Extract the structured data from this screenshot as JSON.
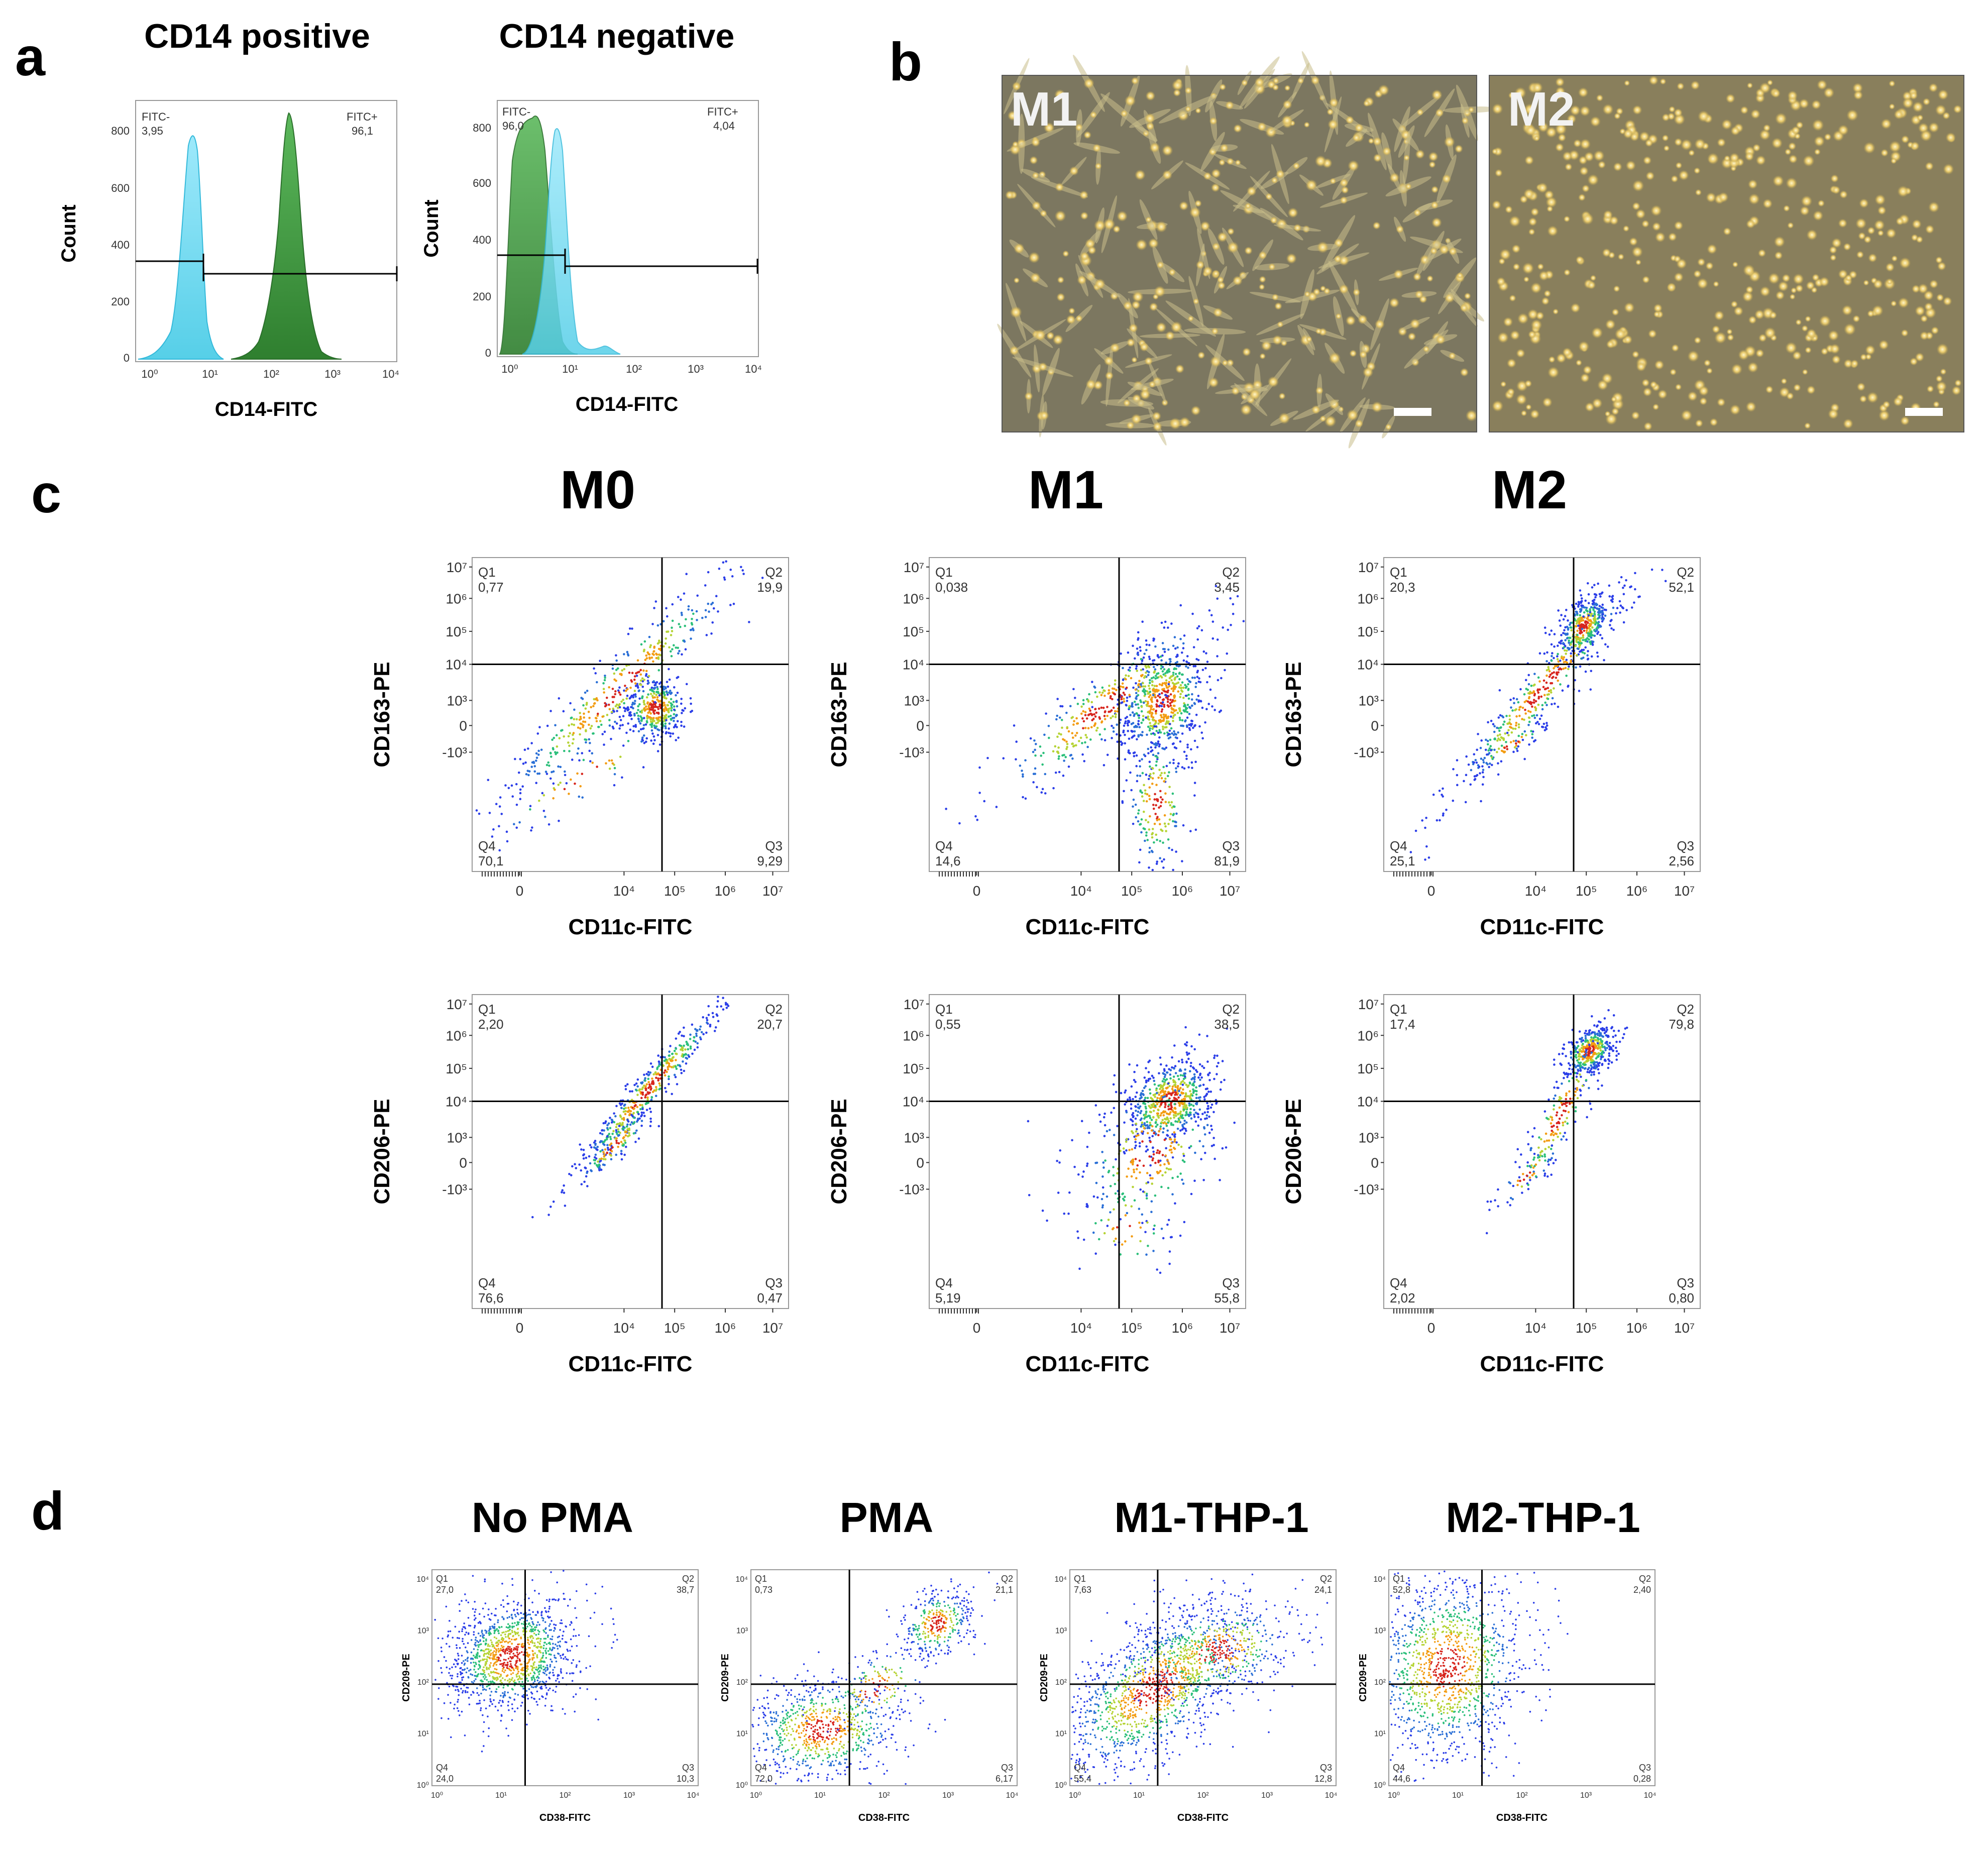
{
  "panel_labels": {
    "a": "a",
    "b": "b",
    "c": "c",
    "d": "d"
  },
  "panel_a": {
    "hist_pos": {
      "title": "CD14 positive",
      "ylabel": "Count",
      "xlabel": "CD14-FITC",
      "left_gate": "FITC-",
      "left_value": "3,95",
      "right_gate": "FITC+",
      "right_value": "96,1",
      "yticks": [
        "0",
        "200",
        "400",
        "600",
        "800"
      ],
      "xticks": [
        "10⁰",
        "10¹",
        "10²",
        "10³",
        "10⁴"
      ]
    },
    "hist_neg": {
      "title": "CD14 negative",
      "ylabel": "Count",
      "xlabel": "CD14-FITC",
      "left_gate": "FITC-",
      "left_value": "96,0",
      "right_gate": "FITC+",
      "right_value": "4,04",
      "yticks": [
        "0",
        "200",
        "400",
        "600",
        "800"
      ],
      "xticks": [
        "10⁰",
        "10¹",
        "10²",
        "10³",
        "10⁴"
      ]
    }
  },
  "panel_b": {
    "left_label": "M1",
    "right_label": "M2"
  },
  "panel_c": {
    "column_titles": [
      "M0",
      "M1",
      "M2"
    ],
    "xlabel": "CD11c-FITC",
    "xticks": [
      "0",
      "10⁴",
      "10⁵",
      "10⁶",
      "10⁷"
    ],
    "yticks": [
      "10⁷",
      "10⁶",
      "10⁵",
      "10⁴",
      "10³",
      "0",
      "-10³"
    ],
    "row1_ylabel": "CD163-PE",
    "row2_ylabel": "CD206-PE",
    "quadrant_names": [
      "Q1",
      "Q2",
      "Q3",
      "Q4"
    ],
    "row1": [
      {
        "q1": "0,77",
        "q2": "19,9",
        "q3": "9,29",
        "q4": "70,1"
      },
      {
        "q1": "0,038",
        "q2": "3,45",
        "q3": "81,9",
        "q4": "14,6"
      },
      {
        "q1": "20,3",
        "q2": "52,1",
        "q3": "2,56",
        "q4": "25,1"
      }
    ],
    "row2": [
      {
        "q1": "2,20",
        "q2": "20,7",
        "q3": "0,47",
        "q4": "76,6"
      },
      {
        "q1": "0,55",
        "q2": "38,5",
        "q3": "55,8",
        "q4": "5,19"
      },
      {
        "q1": "17,4",
        "q2": "79,8",
        "q3": "0,80",
        "q4": "2,02"
      }
    ]
  },
  "panel_d": {
    "titles": [
      "No PMA",
      "PMA",
      "M1-THP-1",
      "M2-THP-1"
    ],
    "xlabel": "CD38-FITC",
    "ylabel": "CD209-PE",
    "xticks": [
      "10⁰",
      "10¹",
      "10²",
      "10³",
      "10⁴"
    ],
    "yticks": [
      "10⁰",
      "10¹",
      "10²",
      "10³",
      "10⁴"
    ],
    "quadrant_names": [
      "Q1",
      "Q2",
      "Q3",
      "Q4"
    ],
    "plots": [
      {
        "q1": "27,0",
        "q2": "38,7",
        "q3": "10,3",
        "q4": "24,0"
      },
      {
        "q1": "0,73",
        "q2": "21,1",
        "q3": "6,17",
        "q4": "72,0"
      },
      {
        "q1": "7,63",
        "q2": "24,1",
        "q3": "12,8",
        "q4": "55,4"
      },
      {
        "q1": "52,8",
        "q2": "2,40",
        "q3": "0,28",
        "q4": "44,6"
      }
    ]
  },
  "colors": {
    "cyan_fill": "#7fdcf0",
    "green_fill": "#3c9a3c",
    "photo_bg": "#7d7860",
    "photo_bg2": "#8a8262"
  }
}
